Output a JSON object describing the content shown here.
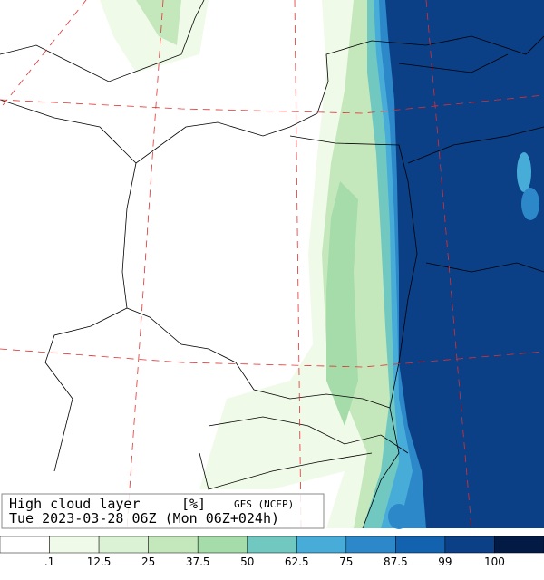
{
  "header": {
    "title": "High cloud layer",
    "unit": "[%]",
    "model": "GFS (NCEP)",
    "valid_time": "Tue 2023-03-28 06Z (Mon 06Z+024h)"
  },
  "legend": {
    "colors": [
      "#ffffff",
      "#f0fae8",
      "#dcf2d4",
      "#c4e8bc",
      "#a6dcaa",
      "#70c8c0",
      "#48acd8",
      "#2c88c8",
      "#1262b0",
      "#0b3f86",
      "#021a44"
    ],
    "labels": [
      ".1",
      "12.5",
      "25",
      "37.5",
      "50",
      "62.5",
      "75",
      "87.5",
      "99",
      "100"
    ]
  }
}
